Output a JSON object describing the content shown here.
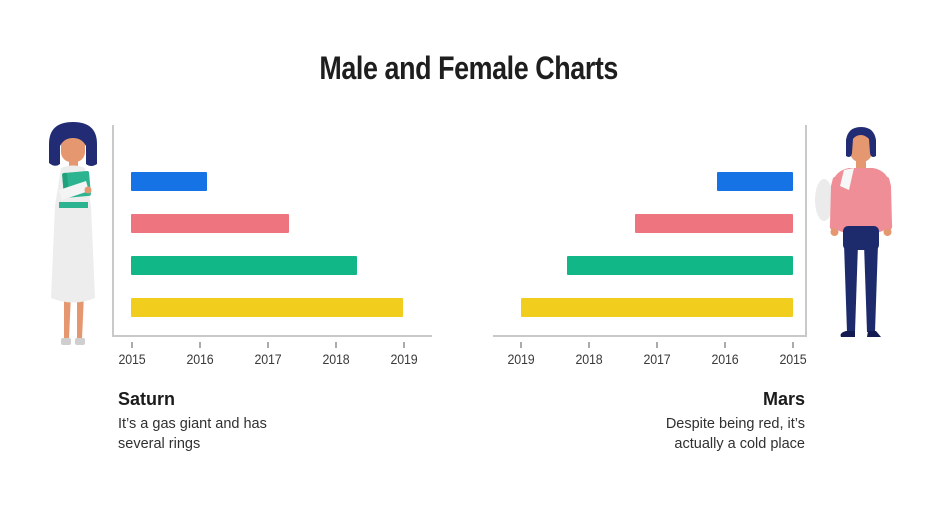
{
  "slide": {
    "title": "Male and Female Charts"
  },
  "figures": {
    "left": {
      "name": "woman-holding-book-illustration"
    },
    "right": {
      "name": "man-with-shoulder-bag-illustration"
    }
  },
  "colors": {
    "blue": "#1573e6",
    "pink": "#ee7480",
    "green": "#12b787",
    "yellow": "#f1cd1e",
    "axis_gray": "#c9c9c9"
  },
  "chart_data": [
    {
      "id": "saturn",
      "type": "bar",
      "orientation": "horizontal",
      "direction": "ltr",
      "title": "Saturn",
      "description_lines": [
        "It’s a gas giant and has",
        "several rings"
      ],
      "x_axis": {
        "min": 2015,
        "max": 2019,
        "ticks": [
          "2015",
          "2016",
          "2017",
          "2018",
          "2019"
        ]
      },
      "grid": false,
      "bars": [
        {
          "name": "blue",
          "color": "#1573e6",
          "start": 2015,
          "end": 2016.12
        },
        {
          "name": "pink",
          "color": "#ee7480",
          "start": 2015,
          "end": 2017.33
        },
        {
          "name": "green",
          "color": "#12b787",
          "start": 2015,
          "end": 2018.33
        },
        {
          "name": "yellow",
          "color": "#f1cd1e",
          "start": 2015,
          "end": 2019
        }
      ]
    },
    {
      "id": "mars",
      "type": "bar",
      "orientation": "horizontal",
      "direction": "rtl",
      "title": "Mars",
      "description_lines": [
        "Despite being red, it’s",
        "actually a cold place"
      ],
      "x_axis": {
        "min": 2015,
        "max": 2019,
        "ticks": [
          "2019",
          "2018",
          "2017",
          "2016",
          "2015"
        ]
      },
      "grid": false,
      "bars": [
        {
          "name": "blue",
          "color": "#1573e6",
          "start": 2015,
          "end": 2016.12
        },
        {
          "name": "pink",
          "color": "#ee7480",
          "start": 2015,
          "end": 2017.33
        },
        {
          "name": "green",
          "color": "#12b787",
          "start": 2015,
          "end": 2018.33
        },
        {
          "name": "yellow",
          "color": "#f1cd1e",
          "start": 2015,
          "end": 2019
        }
      ]
    }
  ]
}
